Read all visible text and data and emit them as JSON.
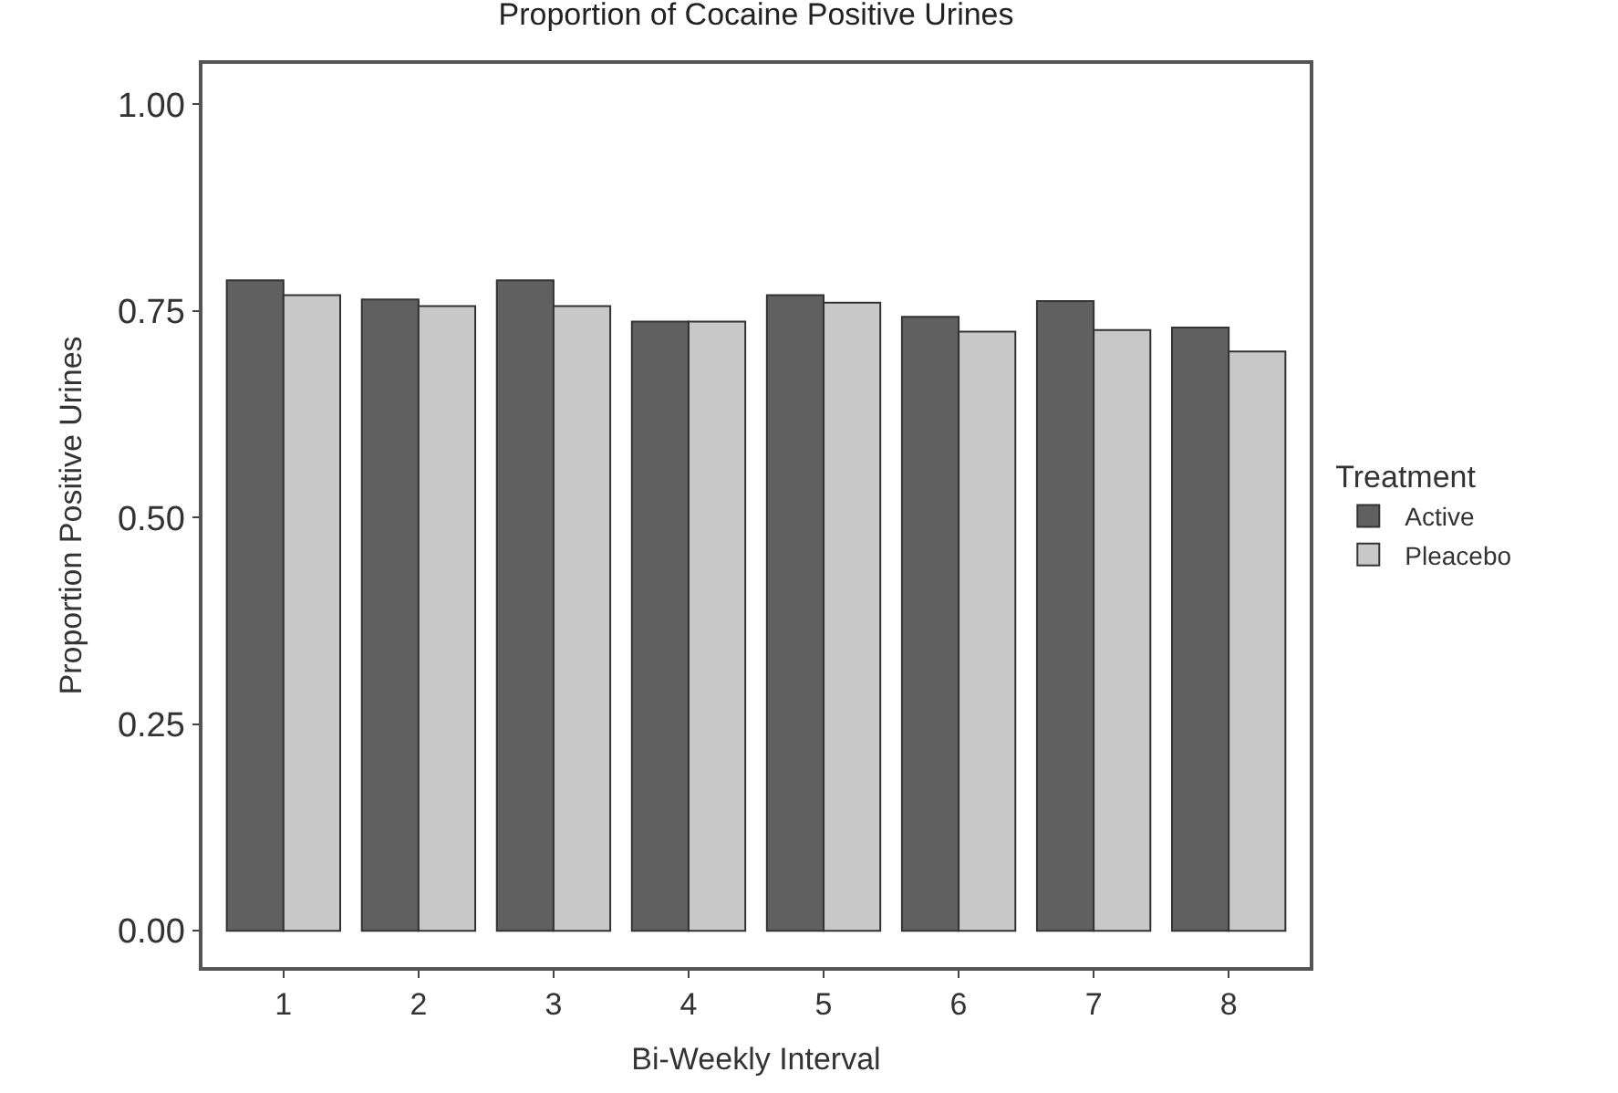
{
  "chart_data": {
    "type": "bar",
    "title": "Proportion of Cocaine Positive Urines",
    "xlabel": "Bi-Weekly Interval",
    "ylabel": "Proportion Positive Urines",
    "legend_title": "Treatment",
    "categories": [
      "1",
      "2",
      "3",
      "4",
      "5",
      "6",
      "7",
      "8"
    ],
    "series": [
      {
        "name": "Active",
        "color": "#606060",
        "values": [
          0.787,
          0.764,
          0.787,
          0.737,
          0.769,
          0.743,
          0.762,
          0.73
        ]
      },
      {
        "name": "Pleacebo",
        "color": "#c8c8c8",
        "values": [
          0.769,
          0.756,
          0.756,
          0.737,
          0.76,
          0.725,
          0.727,
          0.701
        ]
      }
    ],
    "ylim": [
      -0.044,
      1.049
    ],
    "yticks": [
      {
        "value": 0,
        "label": "0.00"
      },
      {
        "value": 0.25,
        "label": "0.25"
      },
      {
        "value": 0.5,
        "label": "0.50"
      },
      {
        "value": 0.75,
        "label": "0.75"
      },
      {
        "value": 1,
        "label": "1.00"
      }
    ],
    "grid": false,
    "legend": "right"
  }
}
